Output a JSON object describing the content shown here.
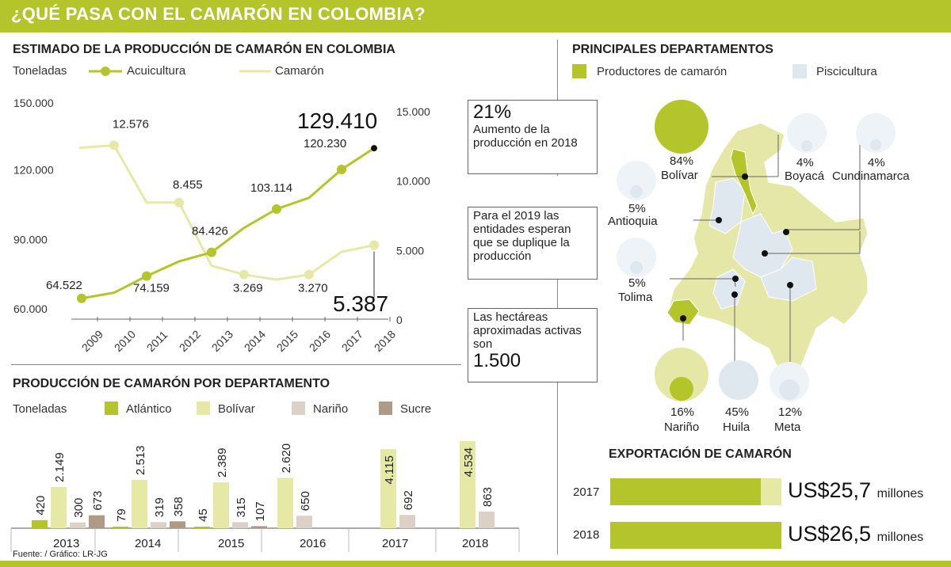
{
  "header": {
    "title": "¿QUÉ PASA CON EL CAMARÓN EN COLOMBIA?"
  },
  "colors": {
    "green": "#b3c52a",
    "light_green": "#e6e9a6",
    "map_fill": "#e4e7a6",
    "blue": "#dfe8ef",
    "narino": "#dcd1c7",
    "sucre": "#b09a86"
  },
  "production": {
    "title": "ESTIMADO DE LA PRODUCCIÓN DE CAMARÓN EN COLOMBIA",
    "unit_label": "Toneladas",
    "legend": {
      "acuicultura": "Acuicultura",
      "camaron": "Camarón"
    },
    "highlight_acui": "129.410",
    "highlight_cam": "5.387"
  },
  "callouts": {
    "c1_big": "21%",
    "c1_text": "Aumento de la producción en 2018",
    "c2_text": "Para el 2019 las entidades esperan que se duplique la producción",
    "c3_text": "Las hectáreas aproximadas activas son",
    "c3_big": "1.500"
  },
  "dept": {
    "title": "PRODUCCIÓN DE CAMARÓN POR DEPARTAMENTO",
    "unit_label": "Toneladas",
    "legend": [
      "Atlántico",
      "Bolívar",
      "Nariño",
      "Sucre"
    ]
  },
  "map": {
    "title": "PRINCIPALES DEPARTAMENTOS",
    "legend_productores": "Productores de camarón",
    "legend_piscicultura": "Piscicultura",
    "labels": {
      "bolivar_pct": "84%",
      "bolivar": "Bolívar",
      "boyaca_pct": "4%",
      "boyaca": "Boyacá",
      "cundinamarca_pct": "4%",
      "cundinamarca": "Cundinamarca",
      "antioquia_pct": "5%",
      "antioquia": "Antioquia",
      "tolima_pct": "5%",
      "tolima": "Tolima",
      "narino_pct": "16%",
      "narino": "Nariño",
      "huila_pct": "45%",
      "huila": "Huila",
      "meta_pct": "12%",
      "meta": "Meta"
    }
  },
  "export": {
    "title": "EXPORTACIÓN DE CAMARÓN",
    "rows": [
      {
        "year": "2017",
        "value": "US$25,7",
        "unit": "millones"
      },
      {
        "year": "2018",
        "value": "US$26,5",
        "unit": "millones"
      }
    ]
  },
  "footer": {
    "source": "Fuente: / Gráfico: LR-JG"
  },
  "chart_data": [
    {
      "type": "line",
      "title": "ESTIMADO DE LA PRODUCCIÓN DE CAMARÓN EN COLOMBIA",
      "ylabel": "Toneladas",
      "x": [
        "2009",
        "2010",
        "2011",
        "2012",
        "2013",
        "2014",
        "2015",
        "2016",
        "2017",
        "2018"
      ],
      "series": [
        {
          "name": "Acuicultura",
          "axis": "left",
          "values": [
            64522,
            67000,
            74159,
            80500,
            84426,
            95000,
            103114,
            108000,
            120230,
            129410
          ]
        },
        {
          "name": "Camarón",
          "axis": "right",
          "values": [
            12400,
            12576,
            8455,
            8455,
            3900,
            3269,
            2900,
            3270,
            4900,
            5387
          ]
        }
      ],
      "left_ticks": [
        "150.000",
        "120.000",
        "90.000",
        "60.000"
      ],
      "right_ticks": [
        "15.000",
        "10.000",
        "5.000",
        "0"
      ],
      "ylim_left": [
        60000,
        150000
      ],
      "ylim_right": [
        0,
        15000
      ],
      "labels": [
        {
          "series": 0,
          "index": 0,
          "text": "64.522"
        },
        {
          "series": 0,
          "index": 2,
          "text": "74.159"
        },
        {
          "series": 0,
          "index": 4,
          "text": "84.426"
        },
        {
          "series": 0,
          "index": 6,
          "text": "103.114"
        },
        {
          "series": 0,
          "index": 8,
          "text": "120.230"
        },
        {
          "series": 1,
          "index": 1,
          "text": "12.576"
        },
        {
          "series": 1,
          "index": 3,
          "text": "8.455"
        },
        {
          "series": 1,
          "index": 5,
          "text": "3.269"
        },
        {
          "series": 1,
          "index": 7,
          "text": "3.270"
        }
      ]
    },
    {
      "type": "bar",
      "title": "PRODUCCIÓN DE CAMARÓN POR DEPARTAMENTO",
      "ylabel": "Toneladas",
      "categories": [
        "2013",
        "2014",
        "2015",
        "2016",
        "2017",
        "2018"
      ],
      "series": [
        {
          "name": "Atlántico",
          "values": [
            420,
            79,
            45,
            null,
            null,
            null
          ],
          "labels": [
            "420",
            "79",
            "45",
            "",
            "",
            ""
          ]
        },
        {
          "name": "Bolívar",
          "values": [
            2149,
            2513,
            2389,
            2620,
            4115,
            4534
          ],
          "labels": [
            "2.149",
            "2.513",
            "2.389",
            "2.620",
            "4.115",
            "4.534"
          ]
        },
        {
          "name": "Nariño",
          "values": [
            300,
            319,
            315,
            650,
            692,
            863
          ],
          "labels": [
            "300",
            "319",
            "315",
            "650",
            "692",
            "863"
          ]
        },
        {
          "name": "Sucre",
          "values": [
            673,
            358,
            107,
            null,
            null,
            null
          ],
          "labels": [
            "673",
            "358",
            "107",
            "",
            "",
            ""
          ]
        }
      ]
    },
    {
      "type": "bar",
      "title": "EXPORTACIÓN DE CAMARÓN",
      "categories": [
        "2017",
        "2018"
      ],
      "values": [
        25.7,
        26.5
      ],
      "value_labels": [
        "US$25,7",
        "US$26,5"
      ],
      "unit": "millones"
    }
  ]
}
